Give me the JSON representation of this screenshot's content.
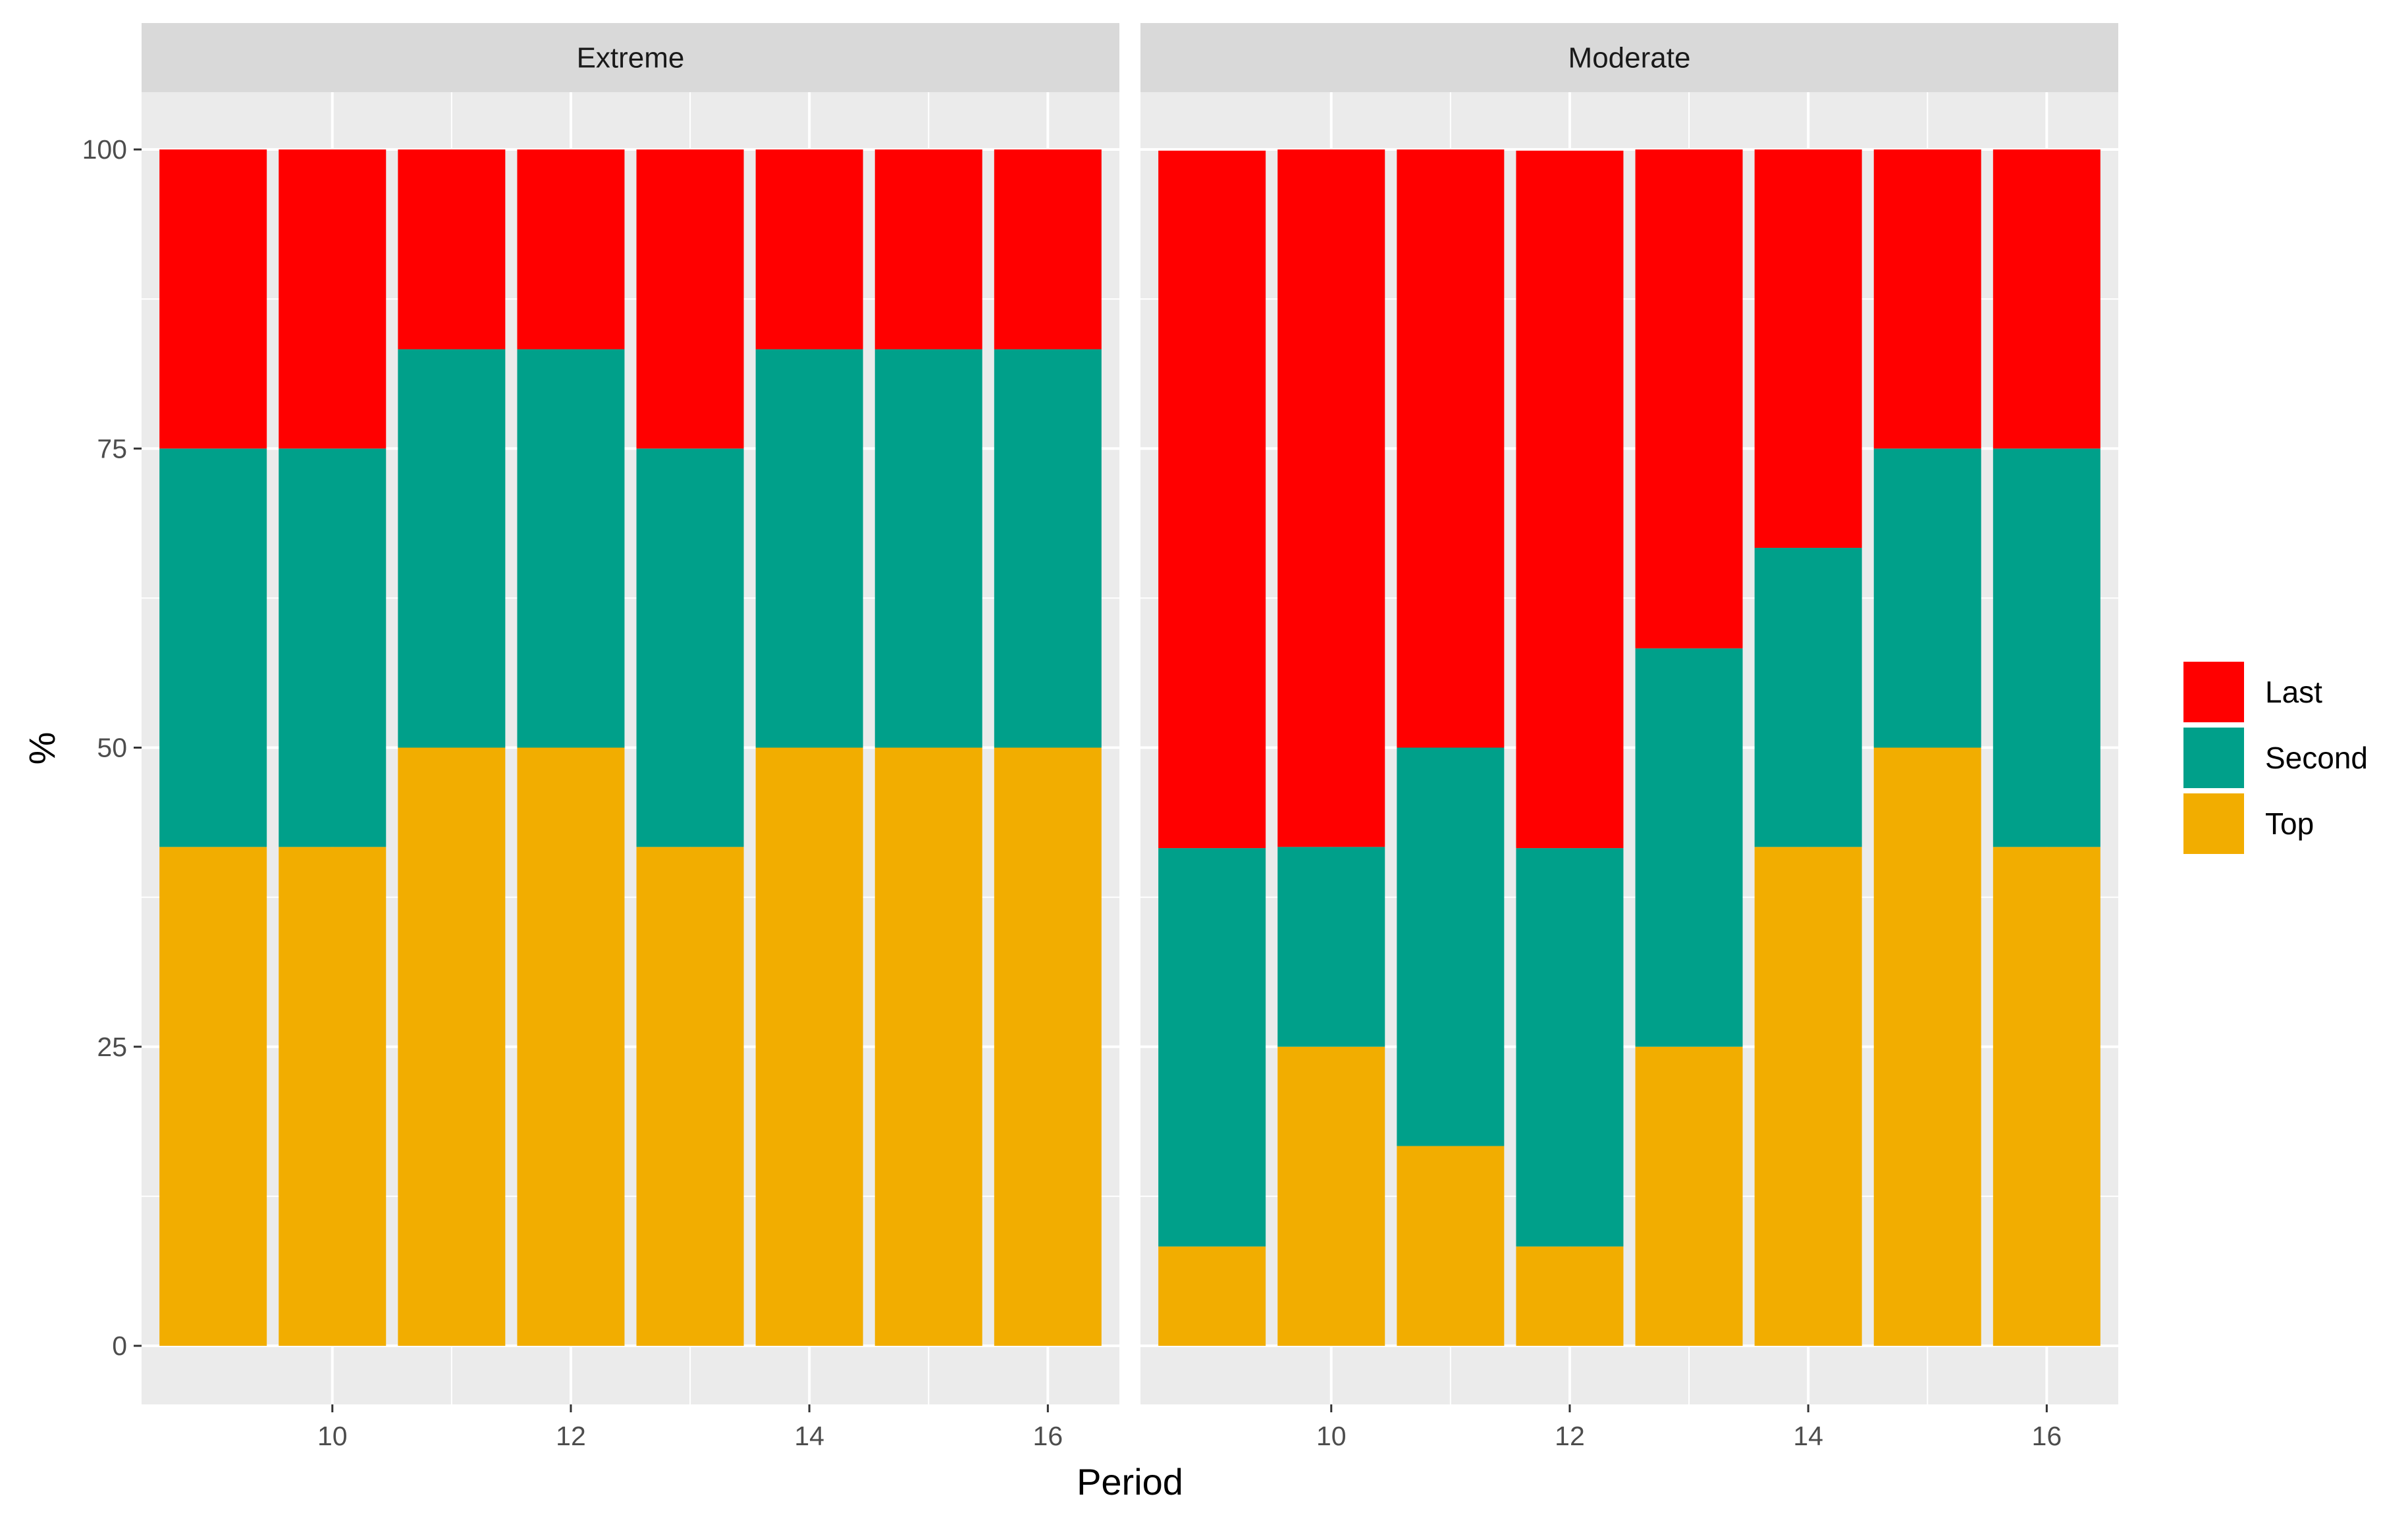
{
  "chart_data": {
    "type": "bar",
    "stacked": true,
    "title": "",
    "xlabel": "Period",
    "ylabel": "%",
    "ylim": [
      0,
      100
    ],
    "yticks": [
      0,
      25,
      50,
      75,
      100
    ],
    "xticks": [
      10,
      12,
      14,
      16
    ],
    "xlim": [
      8.4,
      16.6
    ],
    "grid": true,
    "legend_position": "right",
    "colors": {
      "Last": "#FF0000",
      "Second": "#00A08A",
      "Top": "#F2AD00"
    },
    "stack_order": [
      "Top",
      "Second",
      "Last"
    ],
    "legend_order": [
      "Last",
      "Second",
      "Top"
    ],
    "facets": [
      {
        "label": "Extreme",
        "categories": [
          9,
          10,
          11,
          12,
          13,
          14,
          15,
          16
        ],
        "series": [
          {
            "name": "Top",
            "values": [
              41.7,
              41.7,
              50,
              50,
              41.7,
              50,
              50,
              50
            ]
          },
          {
            "name": "Second",
            "values": [
              33.3,
              33.3,
              33.3,
              33.3,
              33.3,
              33.3,
              33.3,
              33.3
            ]
          },
          {
            "name": "Last",
            "values": [
              25,
              25,
              16.7,
              16.7,
              25,
              16.7,
              16.7,
              16.7
            ]
          }
        ]
      },
      {
        "label": "Moderate",
        "categories": [
          9,
          10,
          11,
          12,
          13,
          14,
          15,
          16
        ],
        "series": [
          {
            "name": "Top",
            "values": [
              8.3,
              25,
              16.7,
              8.3,
              25,
              41.7,
              50,
              41.7
            ]
          },
          {
            "name": "Second",
            "values": [
              33.3,
              16.7,
              33.3,
              33.3,
              33.3,
              25,
              25,
              33.3
            ]
          },
          {
            "name": "Last",
            "values": [
              58.3,
              58.3,
              50,
              58.3,
              41.7,
              33.3,
              25,
              25
            ]
          }
        ]
      }
    ]
  }
}
